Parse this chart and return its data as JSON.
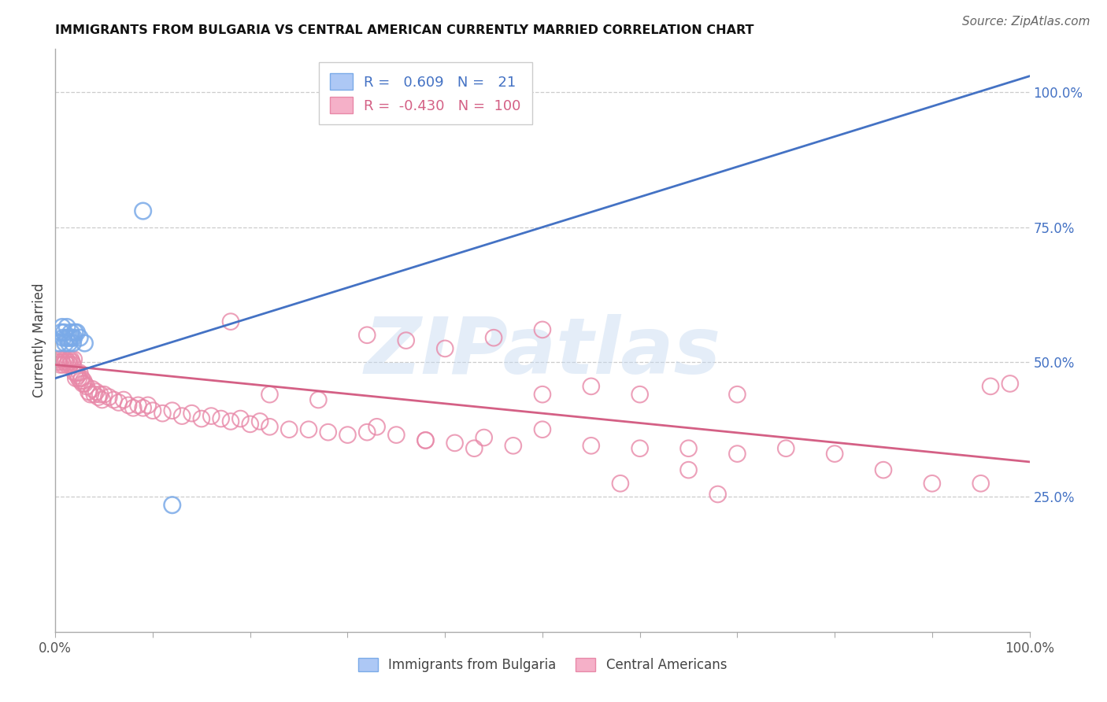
{
  "title": "IMMIGRANTS FROM BULGARIA VS CENTRAL AMERICAN CURRENTLY MARRIED CORRELATION CHART",
  "source": "Source: ZipAtlas.com",
  "ylabel": "Currently Married",
  "ytick_labels": [
    "100.0%",
    "75.0%",
    "50.0%",
    "25.0%"
  ],
  "ytick_values": [
    1.0,
    0.75,
    0.5,
    0.25
  ],
  "bulgaria_face_color": "#adc8f5",
  "bulgaria_edge_color": "#7aaae8",
  "central_face_color": "#f5b0c8",
  "central_edge_color": "#e888a8",
  "bulgaria_line_color": "#4472C4",
  "central_line_color": "#d46085",
  "watermark_color": "#c5d9f0",
  "xlim": [
    0.0,
    1.0
  ],
  "ylim": [
    0.0,
    1.08
  ],
  "background": "#ffffff",
  "grid_color": "#cccccc",
  "bulgaria_x": [
    0.004,
    0.006,
    0.007,
    0.008,
    0.009,
    0.01,
    0.011,
    0.012,
    0.013,
    0.014,
    0.015,
    0.016,
    0.017,
    0.018,
    0.019,
    0.02,
    0.022,
    0.025,
    0.03,
    0.09,
    0.12
  ],
  "bulgaria_y": [
    0.535,
    0.555,
    0.565,
    0.545,
    0.555,
    0.535,
    0.545,
    0.565,
    0.545,
    0.535,
    0.545,
    0.555,
    0.545,
    0.535,
    0.545,
    0.555,
    0.555,
    0.545,
    0.535,
    0.78,
    0.235
  ],
  "bulgaria_line_x0": 0.0,
  "bulgaria_line_y0": 0.47,
  "bulgaria_line_x1": 1.0,
  "bulgaria_line_y1": 1.03,
  "central_line_x0": 0.0,
  "central_line_y0": 0.495,
  "central_line_x1": 1.0,
  "central_line_y1": 0.315,
  "central_x": [
    0.003,
    0.004,
    0.005,
    0.006,
    0.007,
    0.008,
    0.009,
    0.01,
    0.011,
    0.012,
    0.013,
    0.014,
    0.015,
    0.016,
    0.017,
    0.018,
    0.019,
    0.02,
    0.021,
    0.022,
    0.023,
    0.024,
    0.025,
    0.026,
    0.027,
    0.028,
    0.029,
    0.03,
    0.032,
    0.034,
    0.036,
    0.038,
    0.04,
    0.042,
    0.044,
    0.046,
    0.048,
    0.05,
    0.055,
    0.06,
    0.065,
    0.07,
    0.075,
    0.08,
    0.085,
    0.09,
    0.095,
    0.1,
    0.11,
    0.12,
    0.13,
    0.14,
    0.15,
    0.16,
    0.17,
    0.18,
    0.19,
    0.2,
    0.21,
    0.22,
    0.24,
    0.26,
    0.28,
    0.3,
    0.32,
    0.35,
    0.38,
    0.41,
    0.44,
    0.47,
    0.5,
    0.55,
    0.6,
    0.65,
    0.7,
    0.32,
    0.36,
    0.4,
    0.45,
    0.5,
    0.55,
    0.6,
    0.65,
    0.7,
    0.75,
    0.8,
    0.85,
    0.9,
    0.95,
    0.98,
    0.18,
    0.22,
    0.27,
    0.33,
    0.38,
    0.43,
    0.5,
    0.58,
    0.68,
    0.96
  ],
  "central_y": [
    0.5,
    0.505,
    0.495,
    0.505,
    0.5,
    0.495,
    0.505,
    0.5,
    0.505,
    0.495,
    0.5,
    0.505,
    0.495,
    0.505,
    0.5,
    0.495,
    0.505,
    0.48,
    0.47,
    0.48,
    0.475,
    0.47,
    0.48,
    0.465,
    0.47,
    0.46,
    0.465,
    0.46,
    0.455,
    0.445,
    0.44,
    0.45,
    0.44,
    0.445,
    0.435,
    0.44,
    0.43,
    0.44,
    0.435,
    0.43,
    0.425,
    0.43,
    0.42,
    0.415,
    0.42,
    0.415,
    0.42,
    0.41,
    0.405,
    0.41,
    0.4,
    0.405,
    0.395,
    0.4,
    0.395,
    0.39,
    0.395,
    0.385,
    0.39,
    0.38,
    0.375,
    0.375,
    0.37,
    0.365,
    0.37,
    0.365,
    0.355,
    0.35,
    0.36,
    0.345,
    0.44,
    0.345,
    0.34,
    0.34,
    0.33,
    0.55,
    0.54,
    0.525,
    0.545,
    0.56,
    0.455,
    0.44,
    0.3,
    0.44,
    0.34,
    0.33,
    0.3,
    0.275,
    0.275,
    0.46,
    0.575,
    0.44,
    0.43,
    0.38,
    0.355,
    0.34,
    0.375,
    0.275,
    0.255,
    0.455
  ],
  "legend_blue_text_R": "R =",
  "legend_blue_val_R": "0.609",
  "legend_blue_text_N": "N =",
  "legend_blue_val_N": "21",
  "legend_pink_text_R": "R =",
  "legend_pink_val_R": "-0.430",
  "legend_pink_text_N": "N =",
  "legend_pink_val_N": "100"
}
